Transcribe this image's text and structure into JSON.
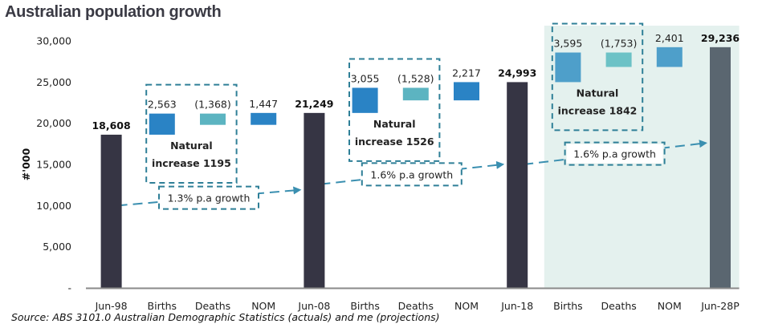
{
  "chart_data": {
    "type": "bar",
    "subtype": "waterfall",
    "title": "Australian population growth",
    "xlabel": "",
    "ylabel": "#'000",
    "ylim": [
      0,
      30000
    ],
    "y_ticks": [
      {
        "value": 0,
        "label": "-"
      },
      {
        "value": 5000,
        "label": "5,000"
      },
      {
        "value": 10000,
        "label": "10,000"
      },
      {
        "value": 15000,
        "label": "15,000"
      },
      {
        "value": 20000,
        "label": "20,000"
      },
      {
        "value": 25000,
        "label": "25,000"
      },
      {
        "value": 30000,
        "label": "30,000"
      }
    ],
    "grid": false,
    "categories": [
      "Jun-98",
      "Births",
      "Deaths",
      "NOM",
      "Jun-08",
      "Births",
      "Deaths",
      "NOM",
      "Jun-18",
      "Births",
      "Deaths",
      "NOM",
      "Jun-28P"
    ],
    "bars": [
      {
        "category": "Jun-98",
        "kind": "total",
        "value": 18608,
        "label": "18,608",
        "color": "#363544"
      },
      {
        "category": "Births",
        "kind": "births",
        "value": 2563,
        "label": "2,563",
        "color": "#2a83c5"
      },
      {
        "category": "Deaths",
        "kind": "deaths",
        "value": -1368,
        "label": "(1,368)",
        "color": "#5cb4c1"
      },
      {
        "category": "NOM",
        "kind": "nom",
        "value": 1447,
        "label": "1,447",
        "color": "#2a83c5"
      },
      {
        "category": "Jun-08",
        "kind": "total",
        "value": 21249,
        "label": "21,249",
        "color": "#363544"
      },
      {
        "category": "Births",
        "kind": "births",
        "value": 3055,
        "label": "3,055",
        "color": "#2a83c5"
      },
      {
        "category": "Deaths",
        "kind": "deaths",
        "value": -1528,
        "label": "(1,528)",
        "color": "#5cb4c1"
      },
      {
        "category": "NOM",
        "kind": "nom",
        "value": 2217,
        "label": "2,217",
        "color": "#2a83c5"
      },
      {
        "category": "Jun-18",
        "kind": "total",
        "value": 24993,
        "label": "24,993",
        "color": "#363544"
      },
      {
        "category": "Births",
        "kind": "births",
        "value": 3595,
        "label": "3,595",
        "color": "#4e9fca"
      },
      {
        "category": "Deaths",
        "kind": "deaths",
        "value": -1753,
        "label": "(1,753)",
        "color": "#6cc2c6"
      },
      {
        "category": "NOM",
        "kind": "nom",
        "value": 2401,
        "label": "2,401",
        "color": "#4e9fca"
      },
      {
        "category": "Jun-28P",
        "kind": "total",
        "value": 29236,
        "label": "29,236",
        "color": "#5a6670"
      }
    ],
    "annotations": {
      "natural_increase": [
        {
          "line1": "Natural",
          "line2": "increase 1195"
        },
        {
          "line1": "Natural",
          "line2": "increase 1526"
        },
        {
          "line1": "Natural",
          "line2": "increase 1842"
        }
      ],
      "growth": [
        {
          "label": "1.3% p.a growth"
        },
        {
          "label": "1.6% p.a growth"
        },
        {
          "label": "1.6% p.a growth"
        }
      ],
      "projection_shading": {
        "from_category_index": 9,
        "to_category_index": 12,
        "color": "#e4f1ee"
      }
    },
    "accent_color": "#2e7f97",
    "source": "Source: ABS 3101.0 Australian Demographic Statistics (actuals) and me (projections)"
  }
}
